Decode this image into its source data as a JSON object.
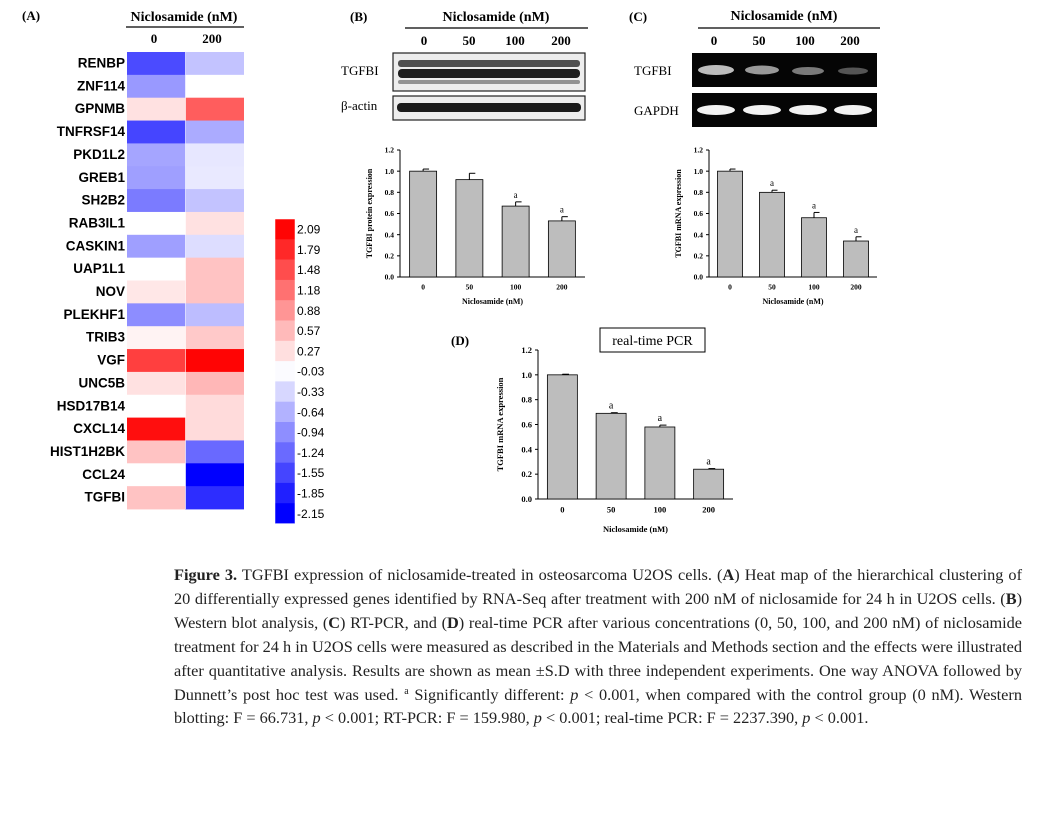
{
  "panelA": {
    "label": "(A)",
    "header": "Niclosamide (nM)",
    "columns": [
      "0",
      "200"
    ],
    "genes": [
      "RENBP",
      "ZNF114",
      "GPNMB",
      "TNFRSF14",
      "PKD1L2",
      "GREB1",
      "SH2B2",
      "RAB3IL1",
      "CASKIN1",
      "UAP1L1",
      "NOV",
      "PLEKHF1",
      "TRIB3",
      "VGF",
      "UNC5B",
      "HSD17B14",
      "CXCL14",
      "HIST1H2BK",
      "CCL24",
      "TGFBI"
    ],
    "values": [
      [
        -1.5,
        -0.5
      ],
      [
        -0.85,
        0.0
      ],
      [
        0.25,
        1.35
      ],
      [
        -1.55,
        -0.7
      ],
      [
        -0.75,
        -0.2
      ],
      [
        -0.8,
        -0.18
      ],
      [
        -1.1,
        -0.5
      ],
      [
        0.0,
        0.25
      ],
      [
        -0.8,
        -0.28
      ],
      [
        0.0,
        0.5
      ],
      [
        0.2,
        0.5
      ],
      [
        -0.95,
        -0.55
      ],
      [
        0.1,
        0.45
      ],
      [
        1.6,
        2.09
      ],
      [
        0.25,
        0.6
      ],
      [
        0.0,
        0.3
      ],
      [
        2.0,
        0.3
      ],
      [
        0.5,
        -1.25
      ],
      [
        0.0,
        -2.15
      ],
      [
        0.5,
        -1.75
      ]
    ],
    "scale_labels": [
      "2.09",
      "1.79",
      "1.48",
      "1.18",
      "0.88",
      "0.57",
      "0.27",
      "-0.03",
      "-0.33",
      "-0.64",
      "-0.94",
      "-1.24",
      "-1.55",
      "-1.85",
      "-2.15"
    ],
    "color_high": "#ff0000",
    "color_mid": "#ffffff",
    "color_low": "#0000ff"
  },
  "panelB": {
    "label": "(B)",
    "header": "Niclosamide (nM)",
    "lanes": [
      "0",
      "50",
      "100",
      "200"
    ],
    "blot_rows": [
      "TGFBI",
      "β-actin"
    ]
  },
  "panelC": {
    "label": "(C)",
    "header": "Niclosamide (nM)",
    "lanes": [
      "0",
      "50",
      "100",
      "200"
    ],
    "gel_rows": [
      "TGFBI",
      "GAPDH"
    ]
  },
  "panelD": {
    "label": "(D)",
    "boxed_title": "real-time PCR"
  },
  "chart_data": [
    {
      "panel": "B",
      "type": "bar",
      "categories": [
        "0",
        "50",
        "100",
        "200"
      ],
      "values": [
        1.0,
        0.92,
        0.67,
        0.53
      ],
      "errors": [
        0.02,
        0.06,
        0.04,
        0.04
      ],
      "annotations": [
        "",
        "",
        "a",
        "a"
      ],
      "xlabel": "Niclosamide (nM)",
      "ylabel": "TGFBI protein expression",
      "ylim": [
        0,
        1.2
      ],
      "yticks": [
        "0.0",
        "0.2",
        "0.4",
        "0.6",
        "0.8",
        "1.0",
        "1.2"
      ]
    },
    {
      "panel": "C",
      "type": "bar",
      "categories": [
        "0",
        "50",
        "100",
        "200"
      ],
      "values": [
        1.0,
        0.8,
        0.56,
        0.34
      ],
      "errors": [
        0.02,
        0.02,
        0.05,
        0.04
      ],
      "annotations": [
        "",
        "a",
        "a",
        "a"
      ],
      "xlabel": "Niclosamide (nM)",
      "ylabel": "TGFBI mRNA expression",
      "ylim": [
        0,
        1.2
      ],
      "yticks": [
        "0.0",
        "0.2",
        "0.4",
        "0.6",
        "0.8",
        "1.0",
        "1.2"
      ]
    },
    {
      "panel": "D",
      "type": "bar",
      "categories": [
        "0",
        "50",
        "100",
        "200"
      ],
      "values": [
        1.0,
        0.69,
        0.58,
        0.24
      ],
      "errors": [
        0.005,
        0.005,
        0.015,
        0.005
      ],
      "annotations": [
        "",
        "a",
        "a",
        "a"
      ],
      "xlabel": "Niclosamide (nM)",
      "ylabel": "TGFBI mRNA expression",
      "ylim": [
        0,
        1.2
      ],
      "yticks": [
        "0.0",
        "0.2",
        "0.4",
        "0.6",
        "0.8",
        "1.0",
        "1.2"
      ]
    }
  ],
  "caption": {
    "label": "Figure 3.",
    "intro": " TGFBI expression of niclosamide-treated in osteosarcoma U2OS cells. (",
    "a_letter": "A",
    "a_text": ") Heat map of the hierarchical clustering of 20 differentially expressed genes identified by RNA-Seq after treatment with 200 nM of niclosamide for 24 h in U2OS cells. (",
    "b_letter": "B",
    "b_text": ") Western blot analysis, (",
    "c_letter": "C",
    "c_text": ") RT-PCR, and (",
    "d_letter": "D",
    "d_text": ") real-time PCR after various concentrations (0, 50, 100, and 200 nM) of niclosamide treatment for 24 h in U2OS cells were measured as described in the Materials and Methods section and the effects were illustrated after quantitative analysis. Results are shown as mean ±S.D with three independent experiments. One way ANOVA followed by Dunnett’s post hoc test was used. ",
    "sup": "a",
    "sig_text": " Significantly different: ",
    "p1": "p",
    "t1": " < 0.001, when compared with the control group (0 nM). Western blotting: F = 66.731, ",
    "p2": "p",
    "t2": " < 0.001; RT-PCR: F = 159.980, ",
    "p3": "p",
    "t3": " < 0.001; real-time PCR: F = 2237.390, ",
    "p4": "p",
    "t4": " < 0.001."
  }
}
